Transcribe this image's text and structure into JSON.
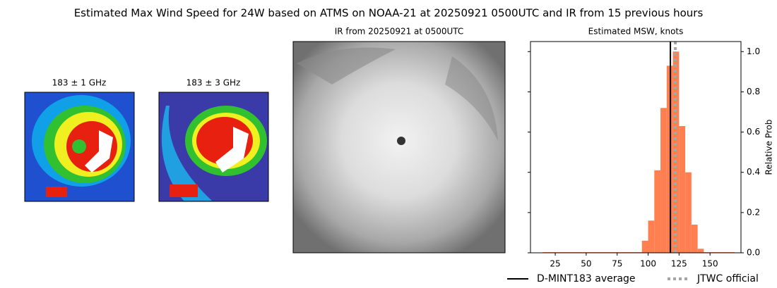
{
  "title": "Estimated Max Wind Speed for 24W based on ATMS on NOAA-21 at 20250921 0500UTC and IR from 15 previous hours",
  "panels": [
    {
      "title": "183 ± 1 GHz"
    },
    {
      "title": "183 ± 3 GHz"
    },
    {
      "title": "IR from 20250921 at 0500UTC"
    }
  ],
  "chart_data": {
    "type": "histogram",
    "title": "Estimated MSW, knots",
    "ylabel": "Relative Prob",
    "bins": [
      15,
      20,
      25,
      30,
      35,
      40,
      45,
      50,
      55,
      60,
      65,
      70,
      75,
      80,
      85,
      90,
      95,
      100,
      105,
      110,
      115,
      120,
      125,
      130,
      135,
      140,
      145,
      150,
      155,
      160,
      165,
      170
    ],
    "values": [
      0.003,
      0.003,
      0.003,
      0.003,
      0.003,
      0.003,
      0.003,
      0.003,
      0.003,
      0.003,
      0.003,
      0.003,
      0.003,
      0.003,
      0.003,
      0.003,
      0.06,
      0.16,
      0.41,
      0.72,
      0.93,
      1.0,
      0.63,
      0.4,
      0.14,
      0.02,
      0.003,
      0.003,
      0.003,
      0.003,
      0.003
    ],
    "color": "#ff7f50",
    "xlim": [
      5,
      175
    ],
    "ylim": [
      0,
      1.05
    ],
    "xticks": [
      25,
      50,
      75,
      100,
      125,
      150
    ],
    "yticks": [
      {
        "value": 0,
        "label": "0.0"
      },
      0.2,
      0.4,
      0.6,
      0.8,
      {
        "value": 1,
        "label": "1.0"
      }
    ],
    "yaxis_side": "right",
    "markers": [
      {
        "name": "D-MINT183 average",
        "x": 118,
        "color": "#000000",
        "style": "solid"
      },
      {
        "name": "JTWC official",
        "x": 122,
        "color": "#a6a6a6",
        "style": "dotted"
      }
    ]
  }
}
